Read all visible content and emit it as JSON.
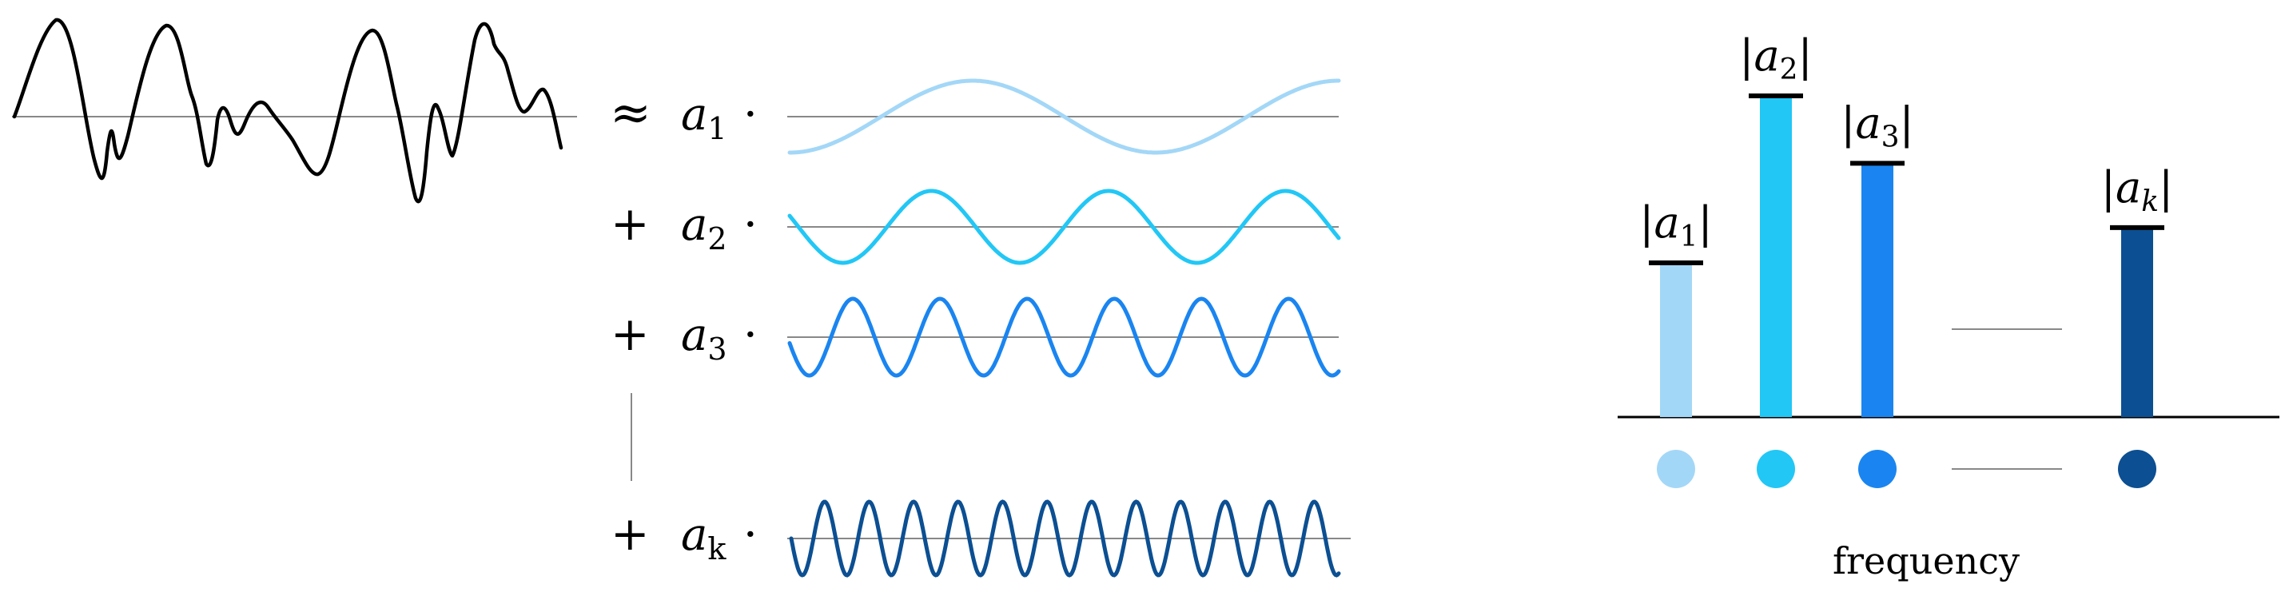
{
  "colors": {
    "signal": "#000000",
    "axis": "#888888",
    "k1": "#a3d7f7",
    "k2": "#22c7f5",
    "k3": "#1a85f0",
    "kk": "#0c4f92"
  },
  "decomposition": {
    "approx_symbol": "≈",
    "plus_symbol": "+",
    "dot_symbol": "·",
    "terms": [
      {
        "coef": "a",
        "sub": "1",
        "color_key": "k1",
        "cycles": 1.5
      },
      {
        "coef": "a",
        "sub": "2",
        "color_key": "k2",
        "cycles": 3.1
      },
      {
        "coef": "a",
        "sub": "3",
        "color_key": "k3",
        "cycles": 6.3
      },
      {
        "coef": "a",
        "sub": "k",
        "color_key": "kk",
        "cycles": 12.3
      }
    ]
  },
  "chart_data": {
    "type": "bar",
    "categories": [
      "|a1|",
      "|a2|",
      "|a3|",
      "|ak|"
    ],
    "values": [
      0.48,
      1.0,
      0.79,
      0.59
    ],
    "labels": [
      {
        "bar": "|",
        "coef": "a",
        "sub": "1"
      },
      {
        "bar": "|",
        "coef": "a",
        "sub": "2"
      },
      {
        "bar": "|",
        "coef": "a",
        "sub": "3"
      },
      {
        "bar": "|",
        "coef": "a",
        "sub": "k"
      }
    ],
    "xlabel": "frequency",
    "ylabel": "",
    "title": "",
    "grid": false
  }
}
